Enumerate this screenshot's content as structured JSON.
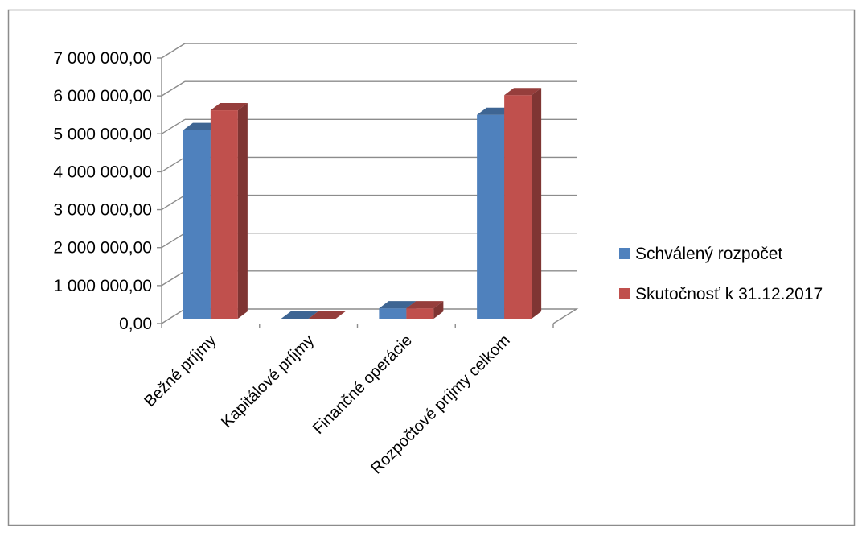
{
  "chart_data": {
    "type": "bar",
    "title": "",
    "xlabel": "",
    "ylabel": "",
    "categories": [
      "Bežné príjmy",
      "Kapitálové príjmy",
      "Finančné operácie",
      "Rozpočtové príjmy celkom"
    ],
    "series": [
      {
        "name": "Schválený rozpočet",
        "color": "#4F81BD",
        "values": [
          5100000,
          0,
          400000,
          5500000
        ]
      },
      {
        "name": "Skutočnosť k 31.12.2017",
        "color": "#C0504D",
        "values": [
          5620000,
          0,
          400000,
          6020000
        ]
      }
    ],
    "ylim": [
      0,
      7000000
    ],
    "yticks": [
      0,
      1000000,
      2000000,
      3000000,
      4000000,
      5000000,
      6000000,
      7000000
    ],
    "ytick_labels": [
      "0,00",
      "1 000 000,00",
      "2 000 000,00",
      "3 000 000,00",
      "4 000 000,00",
      "5 000 000,00",
      "6 000 000,00",
      "7 000 000,00"
    ],
    "grid": true,
    "legend_position": "right",
    "style": "3d-clustered-column"
  }
}
